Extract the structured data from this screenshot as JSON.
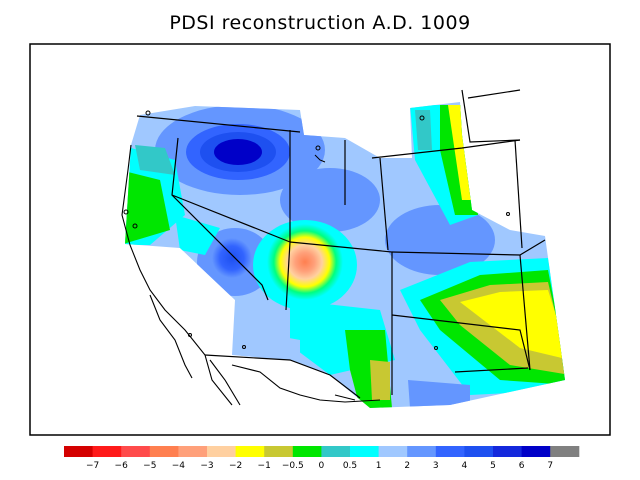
{
  "title": "PDSI reconstruction A.D. 1009",
  "legend": {
    "colors": [
      "#d40000",
      "#ff1a1a",
      "#ff4b4b",
      "#ff7f50",
      "#ffa07a",
      "#ffd0a0",
      "#ffff00",
      "#c8c832",
      "#00e600",
      "#32c8c8",
      "#00ffff",
      "#a0c8ff",
      "#6496ff",
      "#3264ff",
      "#1e50f0",
      "#1428dc",
      "#0000c8",
      "#808080"
    ],
    "labels": [
      "−7",
      "−6",
      "−5",
      "−4",
      "−3",
      "−2",
      "−1",
      "−0.5",
      "0",
      "0.5",
      "1",
      "2",
      "3",
      "4",
      "5",
      "6",
      "7"
    ]
  }
}
